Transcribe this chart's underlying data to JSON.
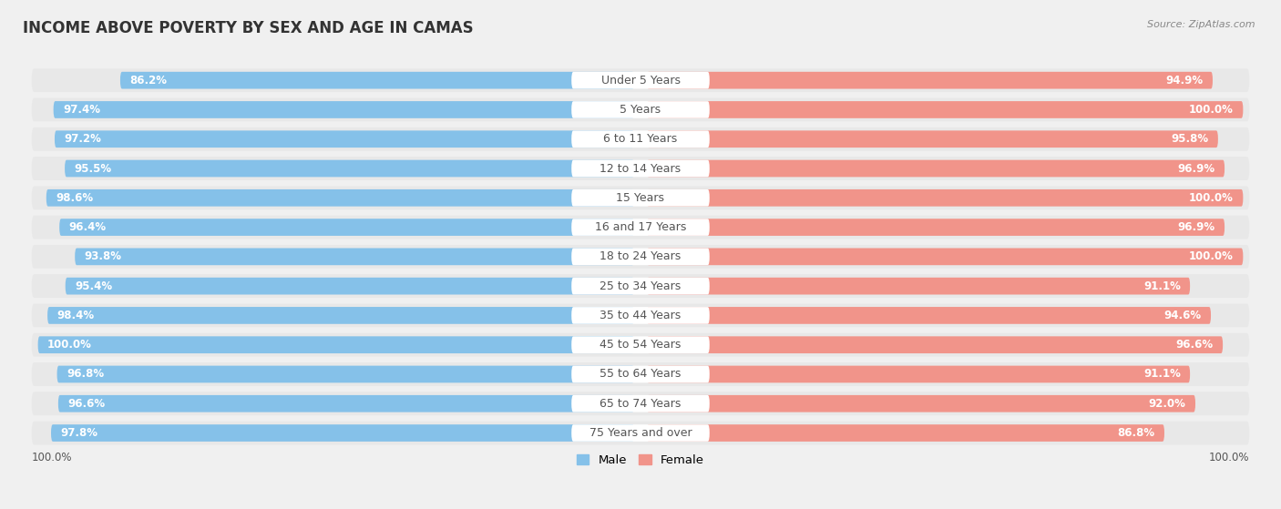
{
  "title": "INCOME ABOVE POVERTY BY SEX AND AGE IN CAMAS",
  "source": "Source: ZipAtlas.com",
  "categories": [
    "Under 5 Years",
    "5 Years",
    "6 to 11 Years",
    "12 to 14 Years",
    "15 Years",
    "16 and 17 Years",
    "18 to 24 Years",
    "25 to 34 Years",
    "35 to 44 Years",
    "45 to 54 Years",
    "55 to 64 Years",
    "65 to 74 Years",
    "75 Years and over"
  ],
  "male_values": [
    86.2,
    97.4,
    97.2,
    95.5,
    98.6,
    96.4,
    93.8,
    95.4,
    98.4,
    100.0,
    96.8,
    96.6,
    97.8
  ],
  "female_values": [
    94.9,
    100.0,
    95.8,
    96.9,
    100.0,
    96.9,
    100.0,
    91.1,
    94.6,
    96.6,
    91.1,
    92.0,
    86.8
  ],
  "male_color": "#85C1E9",
  "female_color": "#F1948A",
  "male_color_light": "#D6EAF8",
  "female_color_light": "#FADBD8",
  "male_label": "Male",
  "female_label": "Female",
  "bg_color": "#f0f0f0",
  "row_bg_color": "#e8e8e8",
  "label_pill_color": "#ffffff",
  "bottom_labels": [
    "100.0%",
    "100.0%"
  ],
  "title_fontsize": 12,
  "label_fontsize": 9,
  "value_fontsize": 8.5,
  "max_value": 100
}
